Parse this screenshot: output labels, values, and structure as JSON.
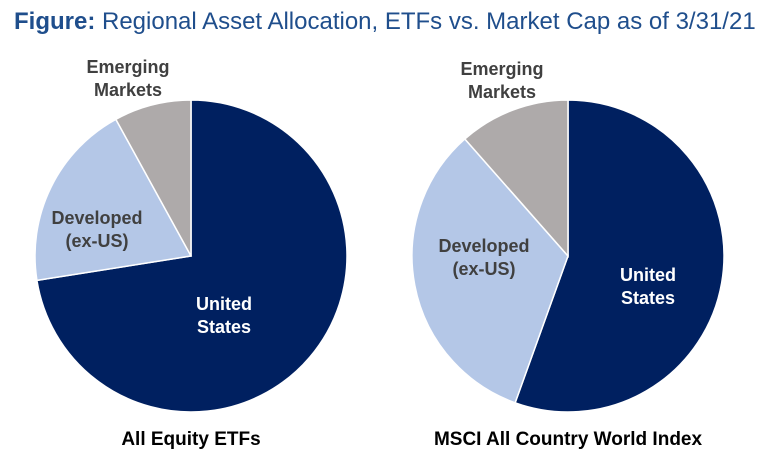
{
  "figure": {
    "prefix": "Figure:",
    "title": "Regional Asset Allocation, ETFs vs. Market Cap as of 3/31/21"
  },
  "chart_data": [
    {
      "type": "pie",
      "title": "All Equity ETFs",
      "slices": [
        {
          "label": "United States",
          "value": 72.5,
          "color": "#002060",
          "label_color": "#ffffff"
        },
        {
          "label": "Developed (ex-US)",
          "value": 19.5,
          "color": "#b4c7e7",
          "label_color": "#404040"
        },
        {
          "label": "Emerging Markets",
          "value": 8.0,
          "color": "#aeaaaa",
          "label_color": "#404040"
        }
      ]
    },
    {
      "type": "pie",
      "title": "MSCI All Country World Index",
      "slices": [
        {
          "label": "United States",
          "value": 55.5,
          "color": "#002060",
          "label_color": "#ffffff"
        },
        {
          "label": "Developed (ex-US)",
          "value": 33.0,
          "color": "#b4c7e7",
          "label_color": "#404040"
        },
        {
          "label": "Emerging Markets",
          "value": 11.5,
          "color": "#aeaaaa",
          "label_color": "#404040"
        }
      ]
    }
  ]
}
